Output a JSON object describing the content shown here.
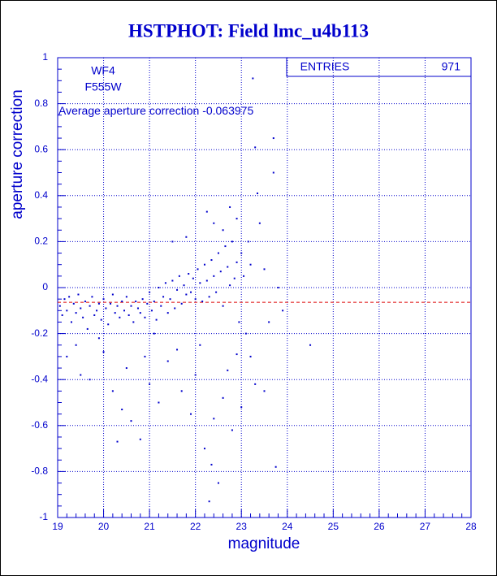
{
  "chart_data": {
    "type": "scatter",
    "title": "HSTPHOT: Field lmc_u4b113",
    "xlabel": "magnitude",
    "ylabel": "aperture correction",
    "xlim": [
      19,
      28
    ],
    "xticks": [
      19,
      20,
      21,
      22,
      23,
      24,
      25,
      26,
      27,
      28
    ],
    "ylim": [
      -1,
      1
    ],
    "yticks": [
      -1,
      -0.8,
      -0.6,
      -0.4,
      -0.2,
      0,
      0.2,
      0.4,
      0.6,
      0.8,
      1
    ],
    "grid": true,
    "color": "#0000cc",
    "stats_label": "ENTRIES",
    "entries": 971,
    "notes": [
      "WF4",
      "F555W"
    ],
    "average_label": "Average aperture correction",
    "average": -0.063975,
    "average_color": "#dd0000",
    "x": [
      19.05,
      19.1,
      19.15,
      19.2,
      19.25,
      19.3,
      19.35,
      19.4,
      19.45,
      19.5,
      19.55,
      19.6,
      19.65,
      19.7,
      19.75,
      19.8,
      19.85,
      19.9,
      19.95,
      20.0,
      20.05,
      20.1,
      20.15,
      20.2,
      20.25,
      20.3,
      20.35,
      20.4,
      20.45,
      20.5,
      20.55,
      20.6,
      20.65,
      20.7,
      20.75,
      20.8,
      20.85,
      20.9,
      20.95,
      21.0,
      21.05,
      21.1,
      21.15,
      21.2,
      21.25,
      21.3,
      21.35,
      21.4,
      21.45,
      21.5,
      21.55,
      21.6,
      21.65,
      21.7,
      21.75,
      21.8,
      21.85,
      21.9,
      21.95,
      22.0,
      22.05,
      22.1,
      22.15,
      22.2,
      22.25,
      22.3,
      22.35,
      22.4,
      22.45,
      22.5,
      22.55,
      22.6,
      22.65,
      22.7,
      22.75,
      22.8,
      22.85,
      22.9,
      19.2,
      19.4,
      19.5,
      19.7,
      19.9,
      20.0,
      20.2,
      20.3,
      20.4,
      20.5,
      20.6,
      20.8,
      20.9,
      21.0,
      21.1,
      21.2,
      21.4,
      21.6,
      21.7,
      21.9,
      22.0,
      22.1,
      22.2,
      22.3,
      22.35,
      22.4,
      22.5,
      22.6,
      22.7,
      22.8,
      22.9,
      23.0,
      21.5,
      21.8,
      22.25,
      22.4,
      22.6,
      22.75,
      22.9,
      23.0,
      23.1,
      23.2,
      23.25,
      23.3,
      23.35,
      23.4,
      23.5,
      23.6,
      23.7,
      23.7,
      23.75,
      23.8,
      23.9,
      24.5,
      23.3,
      23.2,
      23.5,
      22.95,
      23.05,
      23.15
    ],
    "values": [
      -0.08,
      -0.12,
      -0.05,
      -0.1,
      -0.04,
      -0.15,
      -0.07,
      -0.11,
      -0.03,
      -0.09,
      -0.13,
      -0.06,
      -0.18,
      -0.08,
      -0.04,
      -0.12,
      -0.1,
      -0.07,
      -0.14,
      -0.05,
      -0.09,
      -0.16,
      -0.07,
      -0.03,
      -0.11,
      -0.08,
      -0.13,
      -0.06,
      -0.1,
      -0.04,
      -0.12,
      -0.08,
      -0.15,
      -0.06,
      -0.09,
      -0.11,
      -0.05,
      -0.13,
      -0.07,
      -0.02,
      -0.1,
      -0.06,
      -0.14,
      0.0,
      -0.08,
      -0.04,
      0.02,
      -0.11,
      -0.05,
      0.03,
      -0.09,
      -0.01,
      0.05,
      -0.07,
      0.01,
      -0.03,
      0.06,
      -0.02,
      0.04,
      -0.05,
      0.08,
      0.02,
      -0.06,
      0.1,
      0.03,
      -0.04,
      0.12,
      0.05,
      -0.02,
      0.15,
      0.07,
      -0.08,
      0.18,
      0.09,
      0.01,
      0.2,
      0.04,
      0.11,
      -0.3,
      -0.25,
      -0.38,
      -0.4,
      -0.22,
      -0.28,
      -0.45,
      -0.67,
      -0.53,
      -0.35,
      -0.58,
      -0.66,
      -0.3,
      -0.42,
      -0.2,
      -0.5,
      -0.32,
      -0.27,
      -0.45,
      -0.55,
      -0.38,
      -0.25,
      -0.7,
      -0.93,
      -0.77,
      -0.57,
      -0.85,
      -0.48,
      -0.36,
      -0.62,
      -0.29,
      -0.52,
      0.2,
      0.22,
      0.33,
      0.28,
      0.25,
      0.35,
      0.3,
      0.15,
      -0.2,
      -0.3,
      0.91,
      0.61,
      0.41,
      0.28,
      0.08,
      -0.15,
      0.65,
      0.5,
      -0.78,
      0.0,
      -0.1,
      -0.25,
      -0.42,
      0.1,
      -0.45,
      -0.15,
      0.05,
      0.2
    ]
  }
}
